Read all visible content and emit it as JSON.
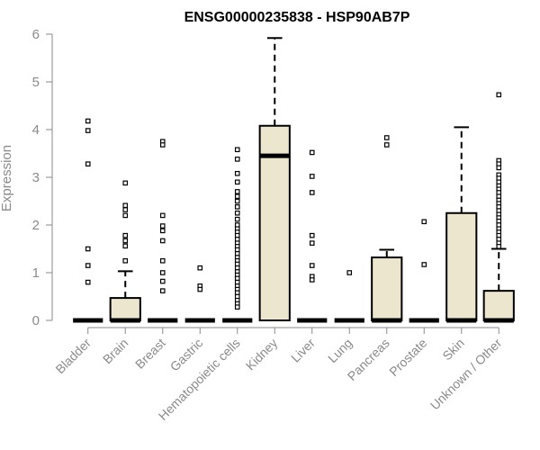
{
  "chart_data": {
    "type": "box",
    "title": "ENSG00000235838 - HSP90AB7P",
    "xlabel": "",
    "ylabel": "Expression",
    "ylim": [
      0,
      6
    ],
    "yticks": [
      0,
      1,
      2,
      3,
      4,
      5,
      6
    ],
    "grid": false,
    "colors": {
      "box_fill": "#ede6cf",
      "stroke": "#000000",
      "axis": "#8a8a8a"
    },
    "categories": [
      "Bladder",
      "Brain",
      "Breast",
      "Gastric",
      "Hematopoietic cells",
      "Kidney",
      "Liver",
      "Lung",
      "Pancreas",
      "Prostate",
      "Skin",
      "Unknown / Other"
    ],
    "boxes": [
      {
        "q1": 0,
        "median": 0,
        "q3": 0,
        "whisker_low": 0,
        "whisker_high": 0,
        "outliers": [
          4.18,
          3.98,
          3.28,
          1.5,
          1.15,
          0.8
        ]
      },
      {
        "q1": 0,
        "median": 0,
        "q3": 0.47,
        "whisker_low": 0,
        "whisker_high": 1.03,
        "outliers": [
          2.88,
          2.41,
          2.32,
          2.2,
          1.78,
          1.67,
          1.56,
          1.25
        ]
      },
      {
        "q1": 0,
        "median": 0,
        "q3": 0,
        "whisker_low": 0,
        "whisker_high": 0,
        "outliers": [
          3.75,
          3.68,
          2.2,
          1.98,
          1.88,
          1.67,
          1.25,
          1.0,
          0.82,
          0.62
        ]
      },
      {
        "q1": 0,
        "median": 0,
        "q3": 0,
        "whisker_low": 0,
        "whisker_high": 0,
        "outliers": [
          1.1,
          0.72,
          0.65
        ]
      },
      {
        "q1": 0,
        "median": 0,
        "q3": 0,
        "whisker_low": 0,
        "whisker_high": 0,
        "outliers": [
          3.58,
          3.38,
          3.08,
          2.9,
          2.7,
          2.6,
          2.5,
          2.38,
          2.25,
          2.12,
          2.0,
          1.92,
          1.85,
          1.78,
          1.7,
          1.62,
          1.55,
          1.48,
          1.4,
          1.32,
          1.25,
          1.18,
          1.1,
          1.02,
          0.95,
          0.88,
          0.8,
          0.72,
          0.65,
          0.58,
          0.5,
          0.42,
          0.35,
          0.28
        ]
      },
      {
        "q1": 0,
        "median": 3.45,
        "q3": 4.08,
        "whisker_low": 0,
        "whisker_high": 5.92,
        "outliers": []
      },
      {
        "q1": 0,
        "median": 0,
        "q3": 0,
        "whisker_low": 0,
        "whisker_high": 0,
        "outliers": [
          3.52,
          3.02,
          2.68,
          1.78,
          1.62,
          1.15,
          0.92,
          0.85
        ]
      },
      {
        "q1": 0,
        "median": 0,
        "q3": 0,
        "whisker_low": 0,
        "whisker_high": 0,
        "outliers": [
          1.0
        ]
      },
      {
        "q1": 0,
        "median": 0,
        "q3": 1.32,
        "whisker_low": 0,
        "whisker_high": 1.48,
        "outliers": [
          3.83,
          3.68
        ]
      },
      {
        "q1": 0,
        "median": 0,
        "q3": 0,
        "whisker_low": 0,
        "whisker_high": 0,
        "outliers": [
          2.07,
          1.17
        ]
      },
      {
        "q1": 0,
        "median": 0,
        "q3": 2.25,
        "whisker_low": 0,
        "whisker_high": 4.05,
        "outliers": []
      },
      {
        "q1": 0,
        "median": 0,
        "q3": 0.62,
        "whisker_low": 0,
        "whisker_high": 1.5,
        "outliers": [
          4.73,
          3.35,
          3.28,
          3.2,
          3.05,
          2.98,
          2.9,
          2.82,
          2.75,
          2.68,
          2.6,
          2.52,
          2.45,
          2.38,
          2.3,
          2.22,
          2.15,
          2.08,
          2.0,
          1.92,
          1.85,
          1.78,
          1.7,
          1.62,
          1.55
        ]
      }
    ]
  }
}
